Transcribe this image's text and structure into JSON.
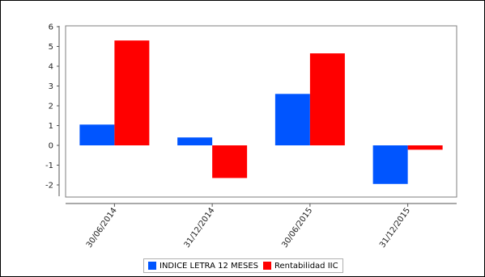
{
  "chart_data": {
    "type": "bar",
    "categories": [
      "30/06/2014",
      "31/12/2014",
      "30/06/2015",
      "31/12/2015"
    ],
    "series": [
      {
        "name": "INDICE LETRA 12 MESES",
        "values": [
          1.05,
          0.4,
          2.6,
          -1.95
        ],
        "color": "#0055ff"
      },
      {
        "name": "Rentabilidad IIC",
        "values": [
          5.3,
          -1.65,
          4.65,
          -0.22
        ],
        "color": "#ff0000"
      }
    ],
    "ylim": [
      -2.5,
      6
    ],
    "yticks": [
      -2,
      -1,
      0,
      1,
      2,
      3,
      4,
      5,
      6
    ],
    "grid": false,
    "legend_position": "bottom-center"
  }
}
